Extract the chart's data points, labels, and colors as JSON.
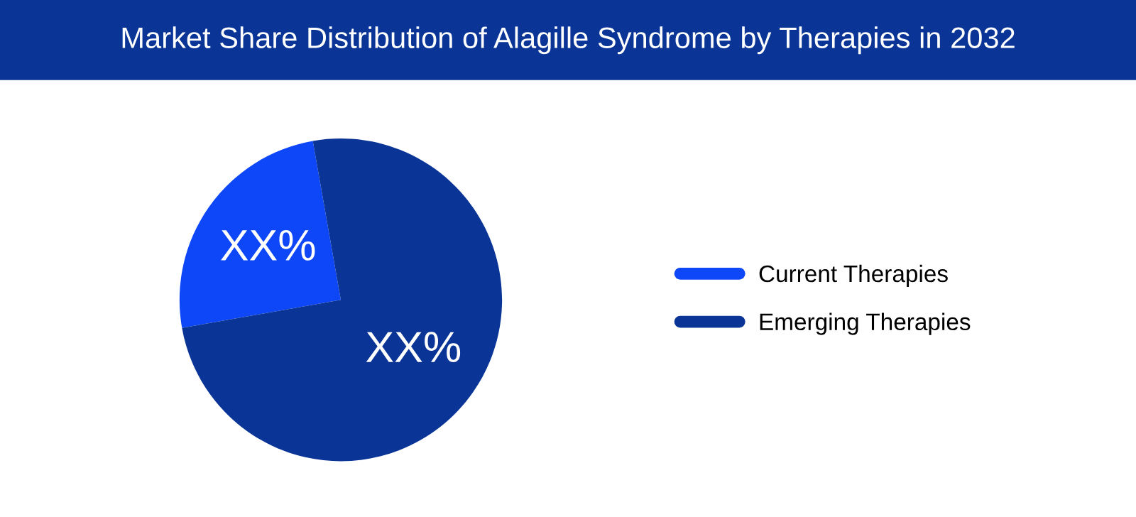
{
  "chart_data": {
    "type": "pie",
    "title": "Market Share Distribution of Alagille Syndrome by Therapies in 2032",
    "categories": [
      "Current Therapies",
      "Emerging Therapies"
    ],
    "values": [
      25,
      75
    ],
    "colors": [
      "#0d47f7",
      "#0a3596"
    ],
    "value_labels": [
      "XX%",
      "XX%"
    ],
    "legend": "right"
  }
}
